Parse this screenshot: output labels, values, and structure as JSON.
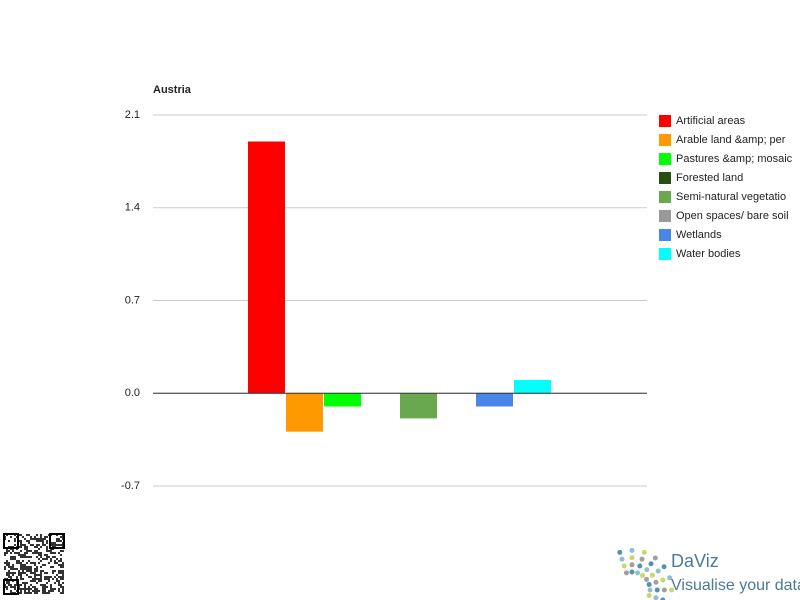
{
  "chart_data": {
    "type": "bar",
    "title": "Austria",
    "series": [
      {
        "name": "Artificial areas",
        "color": "#ff0000",
        "values": [
          1.9
        ]
      },
      {
        "name": "Arable land &amp; per",
        "color": "#ff9900",
        "values": [
          -0.29
        ]
      },
      {
        "name": "Pastures &amp; mosaic",
        "color": "#00ff00",
        "values": [
          -0.1
        ]
      },
      {
        "name": "Forested land",
        "color": "#274e13",
        "values": [
          0
        ]
      },
      {
        "name": "Semi-natural vegetatio",
        "color": "#6aa84f",
        "values": [
          -0.19
        ]
      },
      {
        "name": "Open spaces/ bare soil",
        "color": "#999999",
        "values": [
          0
        ]
      },
      {
        "name": "Wetlands",
        "color": "#4a86e8",
        "values": [
          -0.1
        ]
      },
      {
        "name": "Water bodies",
        "color": "#00ffff",
        "values": [
          0.1
        ]
      }
    ],
    "ylim": [
      -0.7,
      2.1
    ],
    "yticks": [
      2.1,
      1.4,
      0.7,
      {
        "value": 0,
        "label": "0.0"
      },
      -0.7
    ],
    "grid": true,
    "legend": "right"
  },
  "logo": {
    "name": "DaViz",
    "tagline": "Visualise your data"
  }
}
